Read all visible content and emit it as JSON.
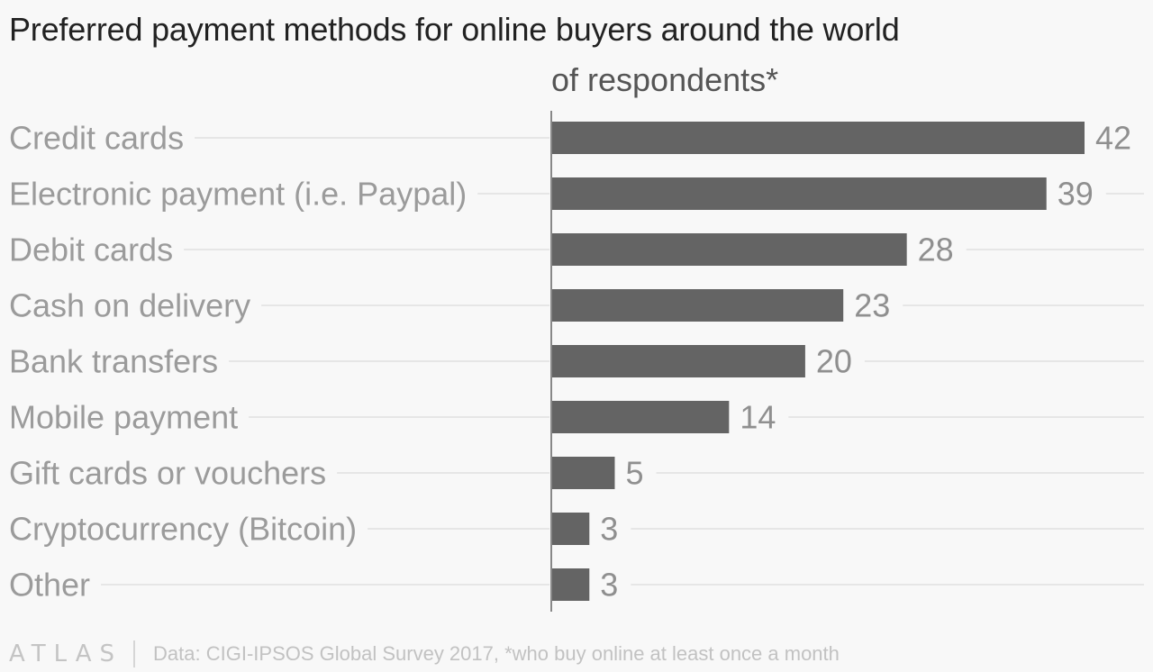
{
  "title": "Preferred payment methods for online buyers around the world",
  "subtitle": "of respondents*",
  "colors": {
    "bar": "#646464",
    "label": "#9b9b9b",
    "value": "#8f8f8f",
    "gridline": "#e6e6e6",
    "axis": "#888888"
  },
  "chart_data": {
    "type": "bar",
    "orientation": "horizontal",
    "title": "Preferred payment methods for online buyers around the world",
    "subtitle": "of respondents*",
    "categories": [
      "Credit cards",
      "Electronic payment (i.e. Paypal)",
      "Debit cards",
      "Cash on delivery",
      "Bank transfers",
      "Mobile payment",
      "Gift cards or vouchers",
      "Cryptocurrency (Bitcoin)",
      "Other"
    ],
    "values": [
      42,
      39,
      28,
      23,
      20,
      14,
      5,
      3,
      3
    ],
    "xlim": [
      0,
      42
    ],
    "grid": true,
    "data_labels": true
  },
  "footer": {
    "logo": "ATLAS",
    "source": "Data: CIGI-IPSOS Global Survey 2017, *who buy online at least once a month"
  }
}
